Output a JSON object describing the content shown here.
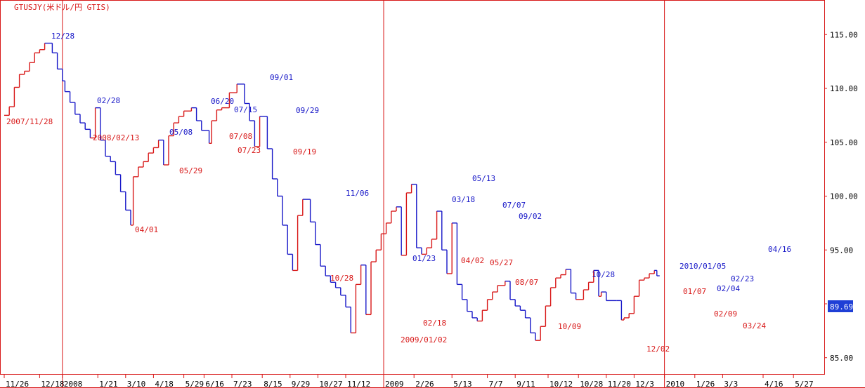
{
  "chart_data": {
    "type": "line",
    "style": "kagi",
    "title": "GTUSJY(米ドル/円 GTIS)",
    "last_value_label": "89.69",
    "ylim": [
      83.5,
      117.8
    ],
    "y_ticks": [
      "115.00",
      "110.00",
      "105.00",
      "100.00",
      "95.00",
      "90.00",
      "85.00"
    ],
    "y_tick_values": [
      115,
      110,
      105,
      100,
      95,
      90,
      85
    ],
    "x_ticks": [
      "11/26",
      "12/18",
      "2008",
      "1/21",
      "3/10",
      "4/18",
      "5/29",
      "6/16",
      "7/23",
      "8/15",
      "9/29",
      "10/27",
      "11/12",
      "2009",
      "2/26",
      "5/13",
      "7/7",
      "9/11",
      "10/12",
      "10/28",
      "11/20",
      "12/3",
      "2010",
      "1/26",
      "3/3",
      "4/16",
      "5/27"
    ],
    "x_tick_index": [
      0,
      14,
      23,
      37,
      48,
      59,
      71,
      79,
      90,
      102,
      113,
      124,
      135,
      150,
      162,
      177,
      191,
      202,
      215,
      227,
      238,
      249,
      261,
      273,
      284,
      300,
      312
    ],
    "year_boundaries": [
      23,
      150,
      261
    ],
    "colors": {
      "up": "#d81818",
      "down": "#1818c8",
      "frame": "#d81818",
      "title": "#d81818",
      "axis_text": "#000000",
      "value_box": "#1f3fd6"
    },
    "series": [
      {
        "points": [
          [
            0,
            107.5
          ],
          [
            2,
            108.3
          ],
          [
            4,
            110.1
          ],
          [
            6,
            111.3
          ],
          [
            8,
            111.6
          ],
          [
            10,
            112.4
          ],
          [
            12,
            113.3
          ],
          [
            14,
            113.6
          ],
          [
            16,
            114.2
          ],
          [
            19,
            113.3
          ],
          [
            21,
            111.8
          ],
          [
            23,
            110.7
          ],
          [
            24,
            109.7
          ],
          [
            26,
            108.7
          ],
          [
            28,
            107.6
          ],
          [
            30,
            106.8
          ],
          [
            32,
            106.2
          ],
          [
            34,
            105.4
          ],
          [
            36,
            108.2
          ],
          [
            38,
            105.2
          ],
          [
            40,
            103.7
          ],
          [
            42,
            103.2
          ],
          [
            44,
            102.0
          ],
          [
            46,
            100.4
          ],
          [
            48,
            98.7
          ],
          [
            50,
            97.3
          ],
          [
            51,
            101.8
          ],
          [
            53,
            102.7
          ],
          [
            55,
            103.2
          ],
          [
            57,
            104.0
          ],
          [
            59,
            104.5
          ],
          [
            61,
            105.2
          ],
          [
            63,
            102.9
          ],
          [
            65,
            105.6
          ],
          [
            67,
            106.8
          ],
          [
            69,
            107.4
          ],
          [
            71,
            107.9
          ],
          [
            74,
            108.2
          ],
          [
            76,
            107.0
          ],
          [
            78,
            106.1
          ],
          [
            81,
            104.9
          ],
          [
            82,
            107.0
          ],
          [
            84,
            108.0
          ],
          [
            86,
            108.2
          ],
          [
            89,
            109.6
          ],
          [
            92,
            110.4
          ],
          [
            95,
            108.6
          ],
          [
            97,
            107.0
          ],
          [
            99,
            104.6
          ],
          [
            101,
            107.4
          ],
          [
            104,
            104.4
          ],
          [
            106,
            101.6
          ],
          [
            108,
            100.0
          ],
          [
            110,
            97.3
          ],
          [
            112,
            94.6
          ],
          [
            114,
            93.1
          ],
          [
            116,
            98.2
          ],
          [
            118,
            99.7
          ],
          [
            121,
            97.6
          ],
          [
            123,
            95.5
          ],
          [
            125,
            93.5
          ],
          [
            127,
            92.6
          ],
          [
            129,
            92.0
          ],
          [
            131,
            91.5
          ],
          [
            133,
            90.8
          ],
          [
            135,
            89.7
          ],
          [
            137,
            87.3
          ],
          [
            139,
            91.8
          ],
          [
            141,
            93.6
          ],
          [
            143,
            89.0
          ],
          [
            145,
            93.9
          ],
          [
            147,
            95.0
          ],
          [
            149,
            96.5
          ],
          [
            151,
            97.5
          ],
          [
            153,
            98.6
          ],
          [
            155,
            99.0
          ],
          [
            157,
            94.5
          ],
          [
            159,
            100.3
          ],
          [
            161,
            101.1
          ],
          [
            163,
            95.2
          ],
          [
            165,
            94.6
          ],
          [
            167,
            95.2
          ],
          [
            169,
            96.0
          ],
          [
            171,
            98.6
          ],
          [
            173,
            95.0
          ],
          [
            175,
            92.8
          ],
          [
            177,
            97.5
          ],
          [
            179,
            91.8
          ],
          [
            181,
            90.4
          ],
          [
            183,
            89.3
          ],
          [
            185,
            88.7
          ],
          [
            187,
            88.4
          ],
          [
            189,
            89.4
          ],
          [
            191,
            90.4
          ],
          [
            193,
            91.1
          ],
          [
            195,
            91.7
          ],
          [
            198,
            92.1
          ],
          [
            200,
            90.4
          ],
          [
            202,
            89.8
          ],
          [
            204,
            89.4
          ],
          [
            206,
            88.7
          ],
          [
            208,
            87.3
          ],
          [
            210,
            86.6
          ],
          [
            212,
            87.9
          ],
          [
            214,
            89.8
          ],
          [
            216,
            91.5
          ],
          [
            218,
            92.4
          ],
          [
            220,
            92.7
          ],
          [
            222,
            93.2
          ],
          [
            224,
            91.0
          ],
          [
            226,
            90.4
          ],
          [
            229,
            91.3
          ],
          [
            231,
            92.0
          ],
          [
            233,
            93.1
          ],
          [
            235,
            90.7
          ],
          [
            236,
            91.1
          ],
          [
            238,
            90.3
          ],
          [
            240,
            90.3
          ],
          [
            242,
            90.3
          ],
          [
            244,
            88.5
          ],
          [
            245,
            88.7
          ],
          [
            247,
            89.1
          ],
          [
            249,
            90.7
          ],
          [
            251,
            92.2
          ],
          [
            253,
            92.4
          ],
          [
            255,
            92.8
          ],
          [
            257,
            93.1
          ],
          [
            258,
            92.6
          ]
        ]
      }
    ],
    "annotations": [
      {
        "text": "2007/11/28",
        "color": "red"
      },
      {
        "text": "12/28",
        "color": "blue"
      },
      {
        "text": "02/28",
        "color": "blue"
      },
      {
        "text": "2008/02/13",
        "color": "red"
      },
      {
        "text": "04/01",
        "color": "red"
      },
      {
        "text": "05/08",
        "color": "blue"
      },
      {
        "text": "05/29",
        "color": "red"
      },
      {
        "text": "06/20",
        "color": "blue"
      },
      {
        "text": "07/15",
        "color": "blue"
      },
      {
        "text": "07/08",
        "color": "red"
      },
      {
        "text": "07/23",
        "color": "red"
      },
      {
        "text": "09/01",
        "color": "blue"
      },
      {
        "text": "09/29",
        "color": "blue"
      },
      {
        "text": "09/19",
        "color": "red"
      },
      {
        "text": "11/06",
        "color": "blue"
      },
      {
        "text": "10/28",
        "color": "red"
      },
      {
        "text": "2009/01/02",
        "color": "red"
      },
      {
        "text": "02/18",
        "color": "red"
      },
      {
        "text": "01/23",
        "color": "blue"
      },
      {
        "text": "03/18",
        "color": "blue"
      },
      {
        "text": "05/13",
        "color": "blue"
      },
      {
        "text": "04/02",
        "color": "red"
      },
      {
        "text": "07/07",
        "color": "blue"
      },
      {
        "text": "05/27",
        "color": "red"
      },
      {
        "text": "09/02",
        "color": "blue"
      },
      {
        "text": "08/07",
        "color": "red"
      },
      {
        "text": "10/09",
        "color": "red"
      },
      {
        "text": "10/28",
        "color": "blue"
      },
      {
        "text": "12/02",
        "color": "red"
      },
      {
        "text": "2010/01/05",
        "color": "blue"
      },
      {
        "text": "01/07",
        "color": "red"
      },
      {
        "text": "02/04",
        "color": "blue"
      },
      {
        "text": "02/23",
        "color": "blue"
      },
      {
        "text": "02/09",
        "color": "red"
      },
      {
        "text": "03/24",
        "color": "red"
      },
      {
        "text": "04/16",
        "color": "blue"
      }
    ]
  }
}
